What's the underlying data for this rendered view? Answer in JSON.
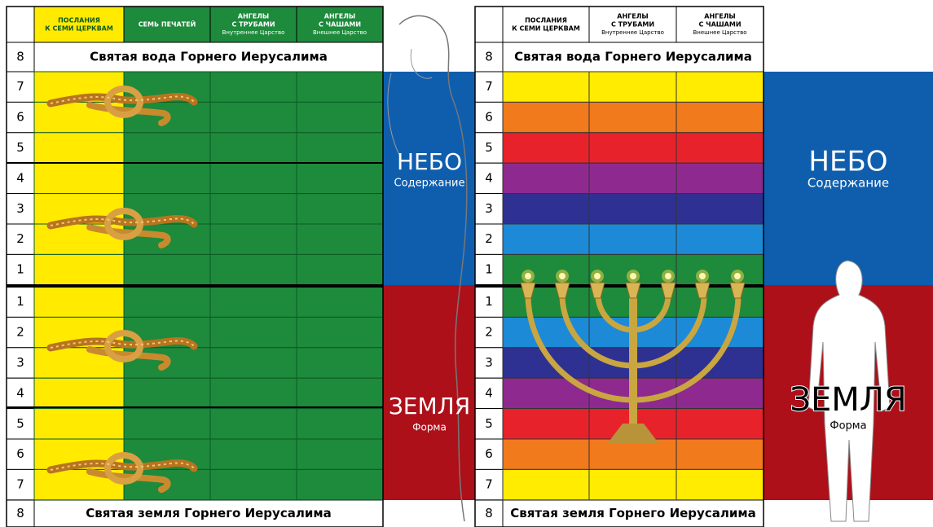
{
  "left": {
    "columns": [
      {
        "lines": [
          "ПОСЛАНИЯ",
          "К СЕМИ ЦЕРКВАМ"
        ]
      },
      {
        "lines": [
          "СЕМЬ ПЕЧАТЕЙ"
        ]
      },
      {
        "lines": [
          "АНГЕЛЫ",
          "С ТРУБАМИ",
          "Внутреннее Царство"
        ]
      },
      {
        "lines": [
          "АНГЕЛЫ",
          "С ЧАШАМИ",
          "Внешнее Царство"
        ]
      }
    ],
    "top_row": {
      "number": "8",
      "label": "Святая вода Горнего Иерусалима"
    },
    "upper_rows": [
      "7",
      "6",
      "5",
      "4",
      "3",
      "2",
      "1"
    ],
    "lower_rows": [
      "1",
      "2",
      "3",
      "4",
      "5",
      "6",
      "7"
    ],
    "bottom_row": {
      "number": "8",
      "label": "Святая земля Горнего Иерусалима"
    },
    "sky": {
      "title": "НЕБО",
      "subtitle": "Содержание"
    },
    "earth": {
      "title": "ЗЕМЛЯ",
      "subtitle": "Форма"
    }
  },
  "right": {
    "columns": [
      {
        "lines": [
          "ПОСЛАНИЯ",
          "К СЕМИ ЦЕРКВАМ"
        ]
      },
      {
        "lines": [
          "АНГЕЛЫ",
          "С ТРУБАМИ",
          "Внутреннее Царство"
        ]
      },
      {
        "lines": [
          "АНГЕЛЫ",
          "С ЧАШАМИ",
          "Внешнее Царство"
        ]
      }
    ],
    "top_row": {
      "number": "8",
      "label": "Святая вода Горнего Иерусалима"
    },
    "upper_rows": [
      "7",
      "6",
      "5",
      "4",
      "3",
      "2",
      "1"
    ],
    "lower_rows": [
      "1",
      "2",
      "3",
      "4",
      "5",
      "6",
      "7"
    ],
    "bottom_row": {
      "number": "8",
      "label": "Святая земля Горнего Иерусалима"
    },
    "sky": {
      "title": "НЕБО",
      "subtitle": "Содержание"
    },
    "earth": {
      "title": "ЗЕМЛЯ",
      "subtitle": "Форма"
    }
  }
}
